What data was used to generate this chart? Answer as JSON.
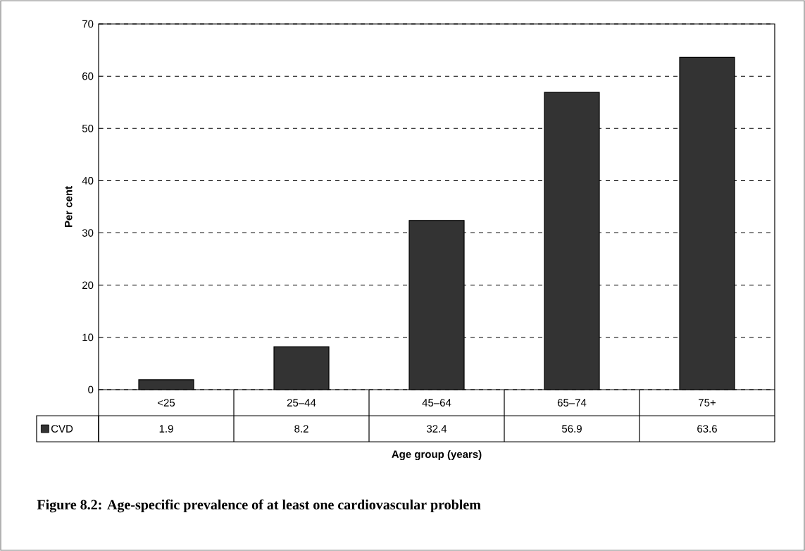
{
  "chart_data": {
    "type": "bar",
    "title": "Figure 8.2: Age-specific prevalence of at least one cardiovascular  problem",
    "xlabel": "Age group (years)",
    "ylabel": "Per cent",
    "categories": [
      "<25",
      "25–44",
      "45–64",
      "65–74",
      "75+"
    ],
    "series": [
      {
        "name": "CVD",
        "color": "#333333",
        "values": [
          1.9,
          8.2,
          32.4,
          56.9,
          63.6
        ]
      }
    ],
    "ylim": [
      0,
      70
    ],
    "yticks": [
      0,
      10,
      20,
      30,
      40,
      50,
      60,
      70
    ],
    "grid": "y",
    "legend": "bottom left",
    "data_labels": true
  }
}
